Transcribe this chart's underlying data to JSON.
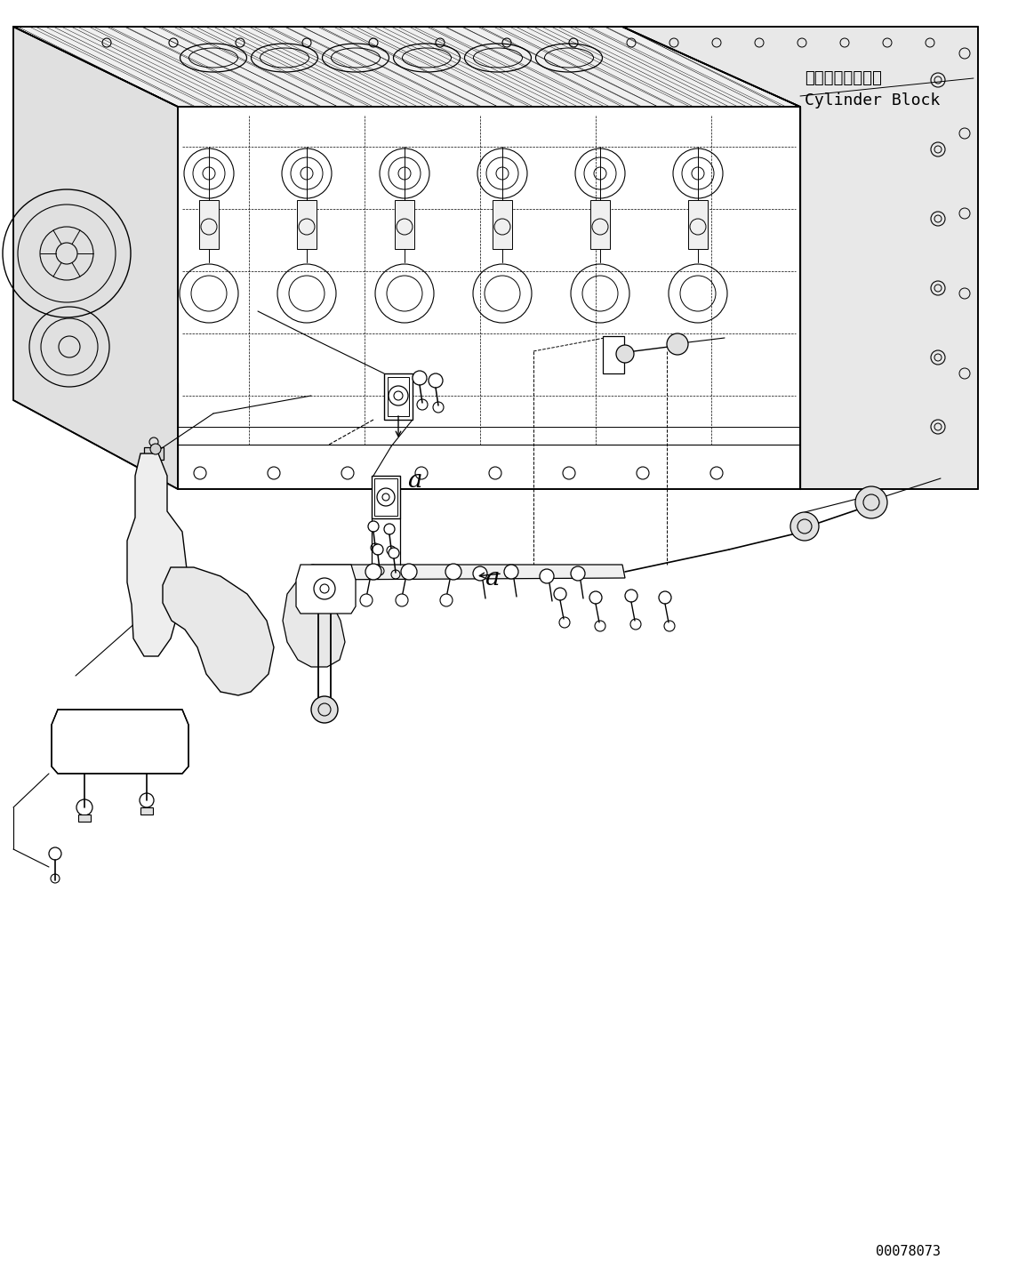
{
  "title": "",
  "background_color": "#ffffff",
  "label_cylinder_block_jp": "シリンダブロック",
  "label_cylinder_block_en": "Cylinder Block",
  "label_a1": "a",
  "label_a2": "a",
  "part_number": "00078073",
  "line_color": "#000000",
  "line_width": 1.0,
  "fig_width": 11.63,
  "fig_height": 14.44,
  "dpi": 100
}
